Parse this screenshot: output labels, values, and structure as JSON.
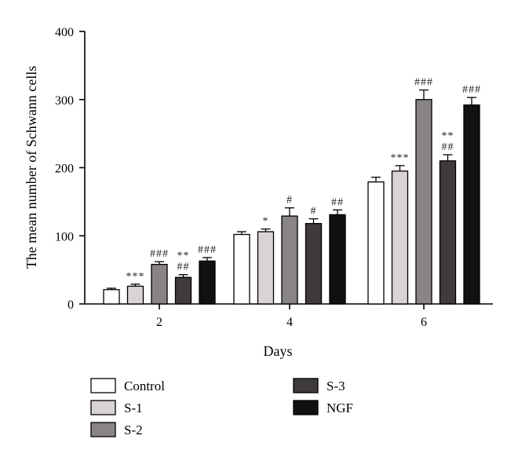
{
  "chart_data": {
    "type": "bar",
    "xlabel": "Days",
    "ylabel": "The mean number of Schwann cells",
    "ylim": [
      0,
      400
    ],
    "yticks": [
      0,
      100,
      200,
      300,
      400
    ],
    "categories": [
      "2",
      "4",
      "6"
    ],
    "series": [
      {
        "name": "Control",
        "color": "#ffffff",
        "values": [
          21,
          102,
          179
        ],
        "errors": [
          2,
          4,
          7
        ],
        "annotations": [
          "",
          "",
          ""
        ]
      },
      {
        "name": "S-1",
        "color": "#d9d3d3",
        "values": [
          26,
          106,
          195
        ],
        "errors": [
          3,
          4,
          8
        ],
        "annotations": [
          "***",
          "*",
          "***"
        ]
      },
      {
        "name": "S-2",
        "color": "#8a8585",
        "values": [
          58,
          129,
          300
        ],
        "errors": [
          4,
          12,
          14
        ],
        "annotations": [
          "###",
          "#",
          "###"
        ]
      },
      {
        "name": "S-3",
        "color": "#3f3b3b",
        "values": [
          39,
          118,
          210
        ],
        "errors": [
          4,
          7,
          9
        ],
        "annotations": [
          "**\n##",
          "#",
          "**\n##"
        ]
      },
      {
        "name": "NGF",
        "color": "#111111",
        "values": [
          63,
          131,
          292
        ],
        "errors": [
          5,
          7,
          11
        ],
        "annotations": [
          "###",
          "##",
          "###"
        ]
      }
    ],
    "legend_position": "bottom",
    "grid": false
  }
}
